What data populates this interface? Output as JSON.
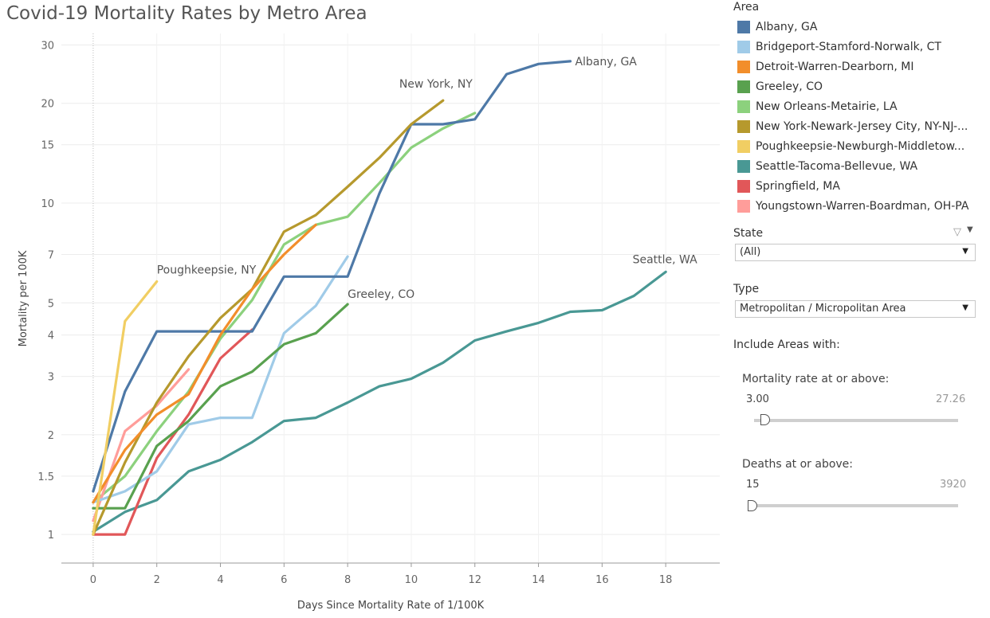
{
  "title": "Covid-19 Mortality Rates by Metro Area",
  "chart_data": {
    "type": "line",
    "xlabel": "Days Since Mortality Rate of 1/100K",
    "ylabel": "Mortality per 100K",
    "yscale": "log",
    "xlim": [
      -1,
      19.7
    ],
    "ylim": [
      0.82,
      32.5
    ],
    "xticks": [
      0,
      2,
      4,
      6,
      8,
      10,
      12,
      14,
      16,
      18
    ],
    "yticks": [
      1,
      1.5,
      2,
      3,
      4,
      5,
      7,
      10,
      15,
      20,
      30
    ],
    "ytick_labels": [
      "1",
      "1.5",
      "2",
      "3",
      "4",
      "5",
      "7",
      "10",
      "15",
      "20",
      "30"
    ],
    "grid": true,
    "series": [
      {
        "name": "Albany, GA",
        "color": "#4e79a7",
        "x": [
          0,
          1,
          2,
          3,
          4,
          5,
          6,
          7,
          8,
          9,
          10,
          11,
          12,
          13,
          14,
          15
        ],
        "values": [
          1.35,
          2.7,
          4.1,
          4.1,
          4.1,
          4.1,
          6.0,
          6.0,
          6.0,
          10.7,
          17.3,
          17.3,
          17.9,
          24.5,
          26.3,
          26.8
        ],
        "label": "Albany, GA"
      },
      {
        "name": "Bridgeport-Stamford-Norwalk, CT",
        "color": "#a0cbe8",
        "x": [
          0,
          1,
          2,
          3,
          4,
          5,
          6,
          7,
          8
        ],
        "values": [
          1.25,
          1.35,
          1.55,
          2.15,
          2.25,
          2.25,
          4.05,
          4.9,
          6.9
        ]
      },
      {
        "name": "Detroit-Warren-Dearborn, MI",
        "color": "#f28e2b",
        "x": [
          0,
          1,
          2,
          3,
          4,
          5,
          6,
          7
        ],
        "values": [
          1.25,
          1.8,
          2.3,
          2.65,
          4.0,
          5.5,
          7.0,
          8.6
        ]
      },
      {
        "name": "Greeley, CO",
        "color": "#59a14f",
        "x": [
          0,
          1,
          2,
          3,
          4,
          5,
          6,
          7,
          8
        ],
        "values": [
          1.2,
          1.2,
          1.85,
          2.2,
          2.8,
          3.1,
          3.75,
          4.05,
          4.95
        ],
        "label": "Greeley, CO"
      },
      {
        "name": "New Orleans-Metairie, LA",
        "color": "#8cd17d",
        "x": [
          0,
          1,
          2,
          3,
          4,
          5,
          6,
          7,
          8,
          9,
          10,
          11,
          12
        ],
        "values": [
          1.25,
          1.5,
          2.05,
          2.7,
          3.9,
          5.1,
          7.5,
          8.6,
          9.1,
          11.5,
          14.7,
          16.8,
          18.7
        ]
      },
      {
        "name": "New York-Newark-Jersey City, NY-NJ-...",
        "color": "#b6992d",
        "x": [
          0,
          1,
          2,
          3,
          4,
          5,
          6,
          7,
          8,
          9,
          10,
          11
        ],
        "values": [
          1.0,
          1.65,
          2.5,
          3.45,
          4.5,
          5.5,
          8.2,
          9.2,
          11.2,
          13.7,
          17.3,
          20.4
        ],
        "label": "New York, NY"
      },
      {
        "name": "Poughkeepsie-Newburgh-Middletow...",
        "color": "#f1ce63",
        "x": [
          0,
          1,
          2
        ],
        "values": [
          1.0,
          4.4,
          5.8
        ],
        "label": "Poughkeepsie, NY"
      },
      {
        "name": "Seattle-Tacoma-Bellevue, WA",
        "color": "#499894",
        "x": [
          0,
          1,
          2,
          3,
          4,
          5,
          6,
          7,
          8,
          9,
          10,
          11,
          12,
          13,
          14,
          15,
          16,
          17,
          18
        ],
        "values": [
          1.02,
          1.17,
          1.27,
          1.55,
          1.68,
          1.9,
          2.2,
          2.25,
          2.5,
          2.8,
          2.95,
          3.3,
          3.85,
          4.1,
          4.35,
          4.7,
          4.75,
          5.25,
          6.2
        ],
        "label": "Seattle, WA"
      },
      {
        "name": "Springfield, MA",
        "color": "#e15759",
        "x": [
          0,
          1,
          2,
          3,
          4,
          5
        ],
        "values": [
          1.0,
          1.0,
          1.7,
          2.3,
          3.4,
          4.15
        ]
      },
      {
        "name": "Youngstown-Warren-Boardman, OH-PA",
        "color": "#ff9d9a",
        "x": [
          0,
          1,
          2,
          3
        ],
        "values": [
          1.1,
          2.05,
          2.45,
          3.15
        ]
      }
    ]
  },
  "legend": {
    "title": "Area",
    "items": [
      {
        "label": "Albany, GA",
        "color": "#4e79a7"
      },
      {
        "label": "Bridgeport-Stamford-Norwalk, CT",
        "color": "#a0cbe8"
      },
      {
        "label": "Detroit-Warren-Dearborn, MI",
        "color": "#f28e2b"
      },
      {
        "label": "Greeley, CO",
        "color": "#59a14f"
      },
      {
        "label": "New Orleans-Metairie, LA",
        "color": "#8cd17d"
      },
      {
        "label": "New York-Newark-Jersey City, NY-NJ-...",
        "color": "#b6992d"
      },
      {
        "label": "Poughkeepsie-Newburgh-Middletow...",
        "color": "#f1ce63"
      },
      {
        "label": "Seattle-Tacoma-Bellevue, WA",
        "color": "#499894"
      },
      {
        "label": "Springfield, MA",
        "color": "#e15759"
      },
      {
        "label": "Youngstown-Warren-Boardman, OH-PA",
        "color": "#ff9d9a"
      }
    ]
  },
  "filters": {
    "state": {
      "label": "State",
      "value": "(All)"
    },
    "type": {
      "label": "Type",
      "value": "Metropolitan / Micropolitan Area"
    }
  },
  "include": {
    "heading": "Include Areas with:",
    "mortality": {
      "label": "Mortality rate at or above:",
      "value": "3.00",
      "max": "27.26",
      "level": 0
    },
    "deaths": {
      "label": "Deaths at or above:",
      "value": "15",
      "max": "3920",
      "level": 0
    }
  }
}
